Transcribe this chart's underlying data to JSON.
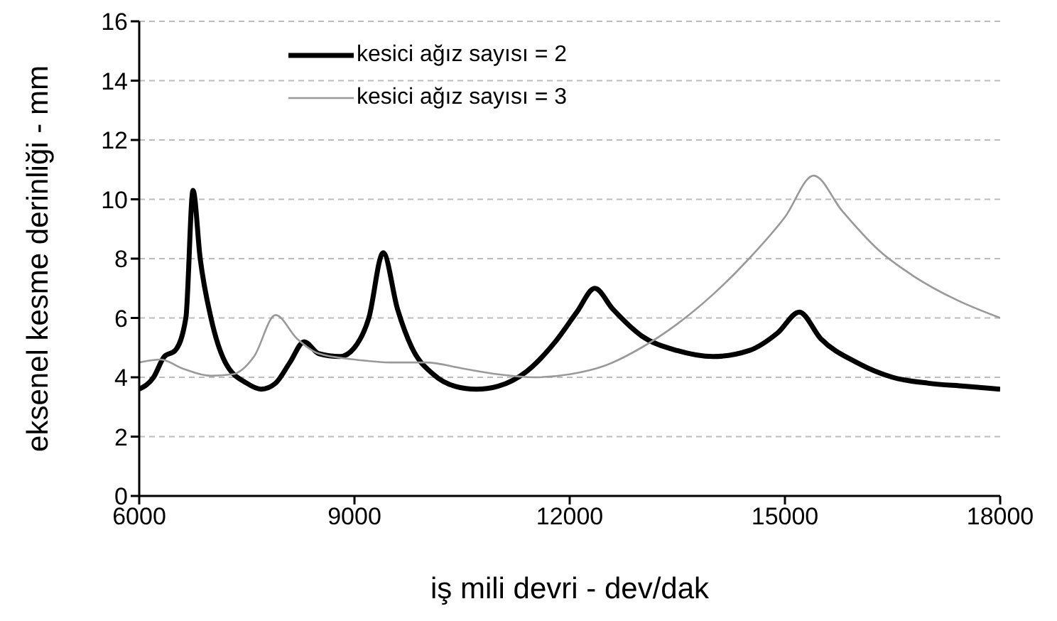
{
  "chart_data": {
    "type": "line",
    "xlabel": "iş mili devri - dev/dak",
    "ylabel": "eksenel kesme derinliği - mm",
    "xlim": [
      6000,
      18000
    ],
    "xticks": [
      6000,
      9000,
      12000,
      15000,
      18000
    ],
    "ylim": [
      0,
      16
    ],
    "yticks": [
      0,
      2,
      4,
      6,
      8,
      10,
      12,
      14,
      16
    ],
    "grid": "y",
    "legend": "top",
    "marker": "none",
    "line_style": "solid",
    "series": [
      {
        "name": "kesici ağız sayısı = 2",
        "color": "#000000",
        "x": [
          6000,
          6200,
          6350,
          6500,
          6650,
          6750,
          6850,
          7000,
          7200,
          7500,
          7700,
          7900,
          8100,
          8300,
          8500,
          8800,
          9000,
          9200,
          9400,
          9600,
          9800,
          10100,
          10400,
          10700,
          11000,
          11400,
          11800,
          12100,
          12350,
          12600,
          13000,
          13500,
          14000,
          14500,
          14900,
          15200,
          15500,
          16000,
          16500,
          17000,
          17500,
          18000
        ],
        "values": [
          3.6,
          4.0,
          4.7,
          4.9,
          6.0,
          10.3,
          8.0,
          6.0,
          4.5,
          3.8,
          3.6,
          3.8,
          4.5,
          5.2,
          4.8,
          4.7,
          5.0,
          6.0,
          8.2,
          6.3,
          5.0,
          4.1,
          3.7,
          3.6,
          3.7,
          4.2,
          5.2,
          6.2,
          7.0,
          6.3,
          5.4,
          4.9,
          4.7,
          4.9,
          5.5,
          6.2,
          5.3,
          4.5,
          4.0,
          3.8,
          3.7,
          3.6
        ]
      },
      {
        "name": "kesici ağız sayısı = 3",
        "color": "#999999",
        "x": [
          6000,
          6300,
          6600,
          7000,
          7300,
          7600,
          7900,
          8200,
          8500,
          9000,
          9500,
          10000,
          10500,
          11000,
          11500,
          12000,
          12500,
          13000,
          13500,
          14000,
          14500,
          15000,
          15400,
          15800,
          16300,
          16800,
          17400,
          18000
        ],
        "values": [
          4.5,
          4.6,
          4.3,
          4.05,
          4.1,
          4.7,
          6.1,
          5.3,
          4.8,
          4.6,
          4.5,
          4.5,
          4.3,
          4.1,
          4.0,
          4.1,
          4.4,
          5.0,
          5.8,
          6.8,
          8.0,
          9.4,
          10.8,
          9.6,
          8.3,
          7.4,
          6.6,
          6.0
        ]
      }
    ]
  }
}
